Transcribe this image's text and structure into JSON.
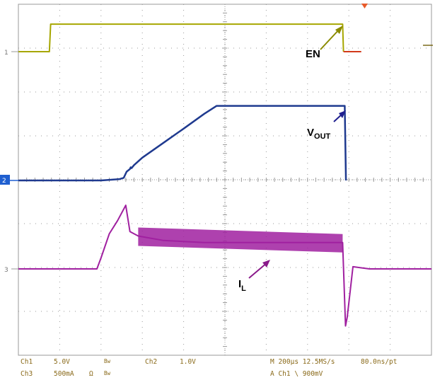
{
  "chart_data": {
    "type": "line",
    "title": "",
    "time_per_div_us": 200,
    "x_divisions": 10,
    "y_divisions": 8,
    "grid": true,
    "channel_markers": [
      "1",
      "2",
      "3"
    ],
    "series": [
      {
        "name": "EN",
        "channel": "Ch1",
        "color": "#a6a600",
        "scale": "5.0V",
        "x": [
          0,
          0.75,
          0.78,
          1.0,
          2.0,
          3.0,
          4.0,
          5.0,
          6.0,
          7.0,
          7.85,
          7.87
        ],
        "y": [
          1.0,
          1.0,
          4.55,
          4.55,
          4.55,
          4.55,
          4.55,
          4.55,
          4.55,
          4.55,
          4.55,
          1.0
        ]
      },
      {
        "name": "V_OUT",
        "channel": "Ch2",
        "color": "#1f3a8f",
        "scale": "1.0V",
        "x": [
          0,
          2.0,
          2.45,
          2.55,
          2.62,
          2.7,
          2.72,
          2.74,
          2.8,
          3.0,
          3.5,
          4.0,
          4.5,
          4.8,
          5.0,
          6.0,
          7.0,
          7.9,
          7.93
        ],
        "y": [
          0,
          0,
          0.03,
          0.06,
          0.2,
          0.26,
          0.3,
          0.28,
          0.35,
          0.52,
          0.85,
          1.18,
          1.52,
          1.7,
          1.7,
          1.7,
          1.7,
          1.7,
          0
        ]
      },
      {
        "name": "I_L",
        "channel": "Ch3",
        "color": "#a020a0",
        "scale": "500mA",
        "x": [
          0,
          1.9,
          2.0,
          2.2,
          2.4,
          2.6,
          2.7,
          2.9,
          3.5,
          4.5,
          5.5,
          6.5,
          7.5,
          7.85,
          7.92,
          7.96,
          8.1,
          8.5,
          9.5,
          10.0
        ],
        "y": [
          0,
          0,
          0.25,
          0.8,
          1.1,
          1.45,
          0.85,
          0.75,
          0.65,
          0.6,
          0.6,
          0.6,
          0.6,
          0.6,
          -1.3,
          -1.1,
          0.05,
          0,
          0,
          0
        ]
      }
    ],
    "annotations": [
      "EN",
      "V",
      "OUT",
      "I",
      "L"
    ]
  },
  "status_bar": {
    "ch1_label": "Ch1",
    "ch1_scale": "5.0V",
    "ch1_bw": "Bw",
    "ch2_label": "Ch2",
    "ch2_scale": "1.0V",
    "ch3_label": "Ch3",
    "ch3_scale": "500mA",
    "ch3_ohm": "Ω",
    "ch3_bw": "Bw",
    "timebase": "M 200µs 12.5MS/s",
    "record": "80.0ns/pt",
    "trigger": "A  Ch1  \\  900mV"
  },
  "colors": {
    "grid": "#9a9a9a",
    "status_text": "#8a6a1a",
    "ch2_marker_bg": "#1f5fd0"
  }
}
